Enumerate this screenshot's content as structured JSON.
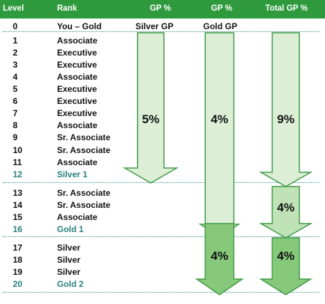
{
  "header": {
    "level": "Level",
    "rank": "Rank",
    "gp1": "GP %",
    "gp2": "GP %",
    "total": "Total GP %"
  },
  "subheaders": {
    "silver_gp": "Silver GP",
    "gold_gp": "Gold GP"
  },
  "rows": [
    {
      "level": "0",
      "rank": "You – Gold"
    },
    {
      "level": "1",
      "rank": "Associate"
    },
    {
      "level": "2",
      "rank": "Executive"
    },
    {
      "level": "3",
      "rank": "Executive"
    },
    {
      "level": "4",
      "rank": "Associate"
    },
    {
      "level": "5",
      "rank": "Executive"
    },
    {
      "level": "6",
      "rank": "Executive"
    },
    {
      "level": "7",
      "rank": "Executive"
    },
    {
      "level": "8",
      "rank": "Associate"
    },
    {
      "level": "9",
      "rank": "Sr. Associate"
    },
    {
      "level": "10",
      "rank": "Sr. Associate"
    },
    {
      "level": "11",
      "rank": "Associate"
    },
    {
      "level": "12",
      "rank": "Silver 1"
    },
    {
      "level": "13",
      "rank": "Sr. Associate"
    },
    {
      "level": "14",
      "rank": "Sr. Associate"
    },
    {
      "level": "15",
      "rank": "Associate"
    },
    {
      "level": "16",
      "rank": "Gold 1"
    },
    {
      "level": "17",
      "rank": "Silver"
    },
    {
      "level": "18",
      "rank": "Silver"
    },
    {
      "level": "19",
      "rank": "Silver"
    },
    {
      "level": "20",
      "rank": "Gold 2"
    }
  ],
  "arrows": {
    "silver_gp": "5%",
    "gold_gp": "4%",
    "total_gp_1": "9%",
    "total_gp_2": "4%",
    "gold_gp_2": "4%",
    "total_gp_3": "4%"
  },
  "colors": {
    "header_bg": "#2f9a3d",
    "arrow_light": "#dcefd6",
    "arrow_mid": "#bfe3b6",
    "arrow_dark": "#86c97a",
    "arrow_stroke": "#3f9a47",
    "teal_text": "#2a7f7f"
  }
}
